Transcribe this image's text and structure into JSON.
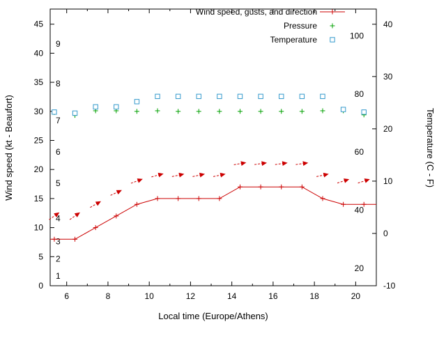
{
  "chart_data": {
    "type": "line",
    "title": "",
    "xlabel": "Local time (Europe/Athens)",
    "ylabel_left": "Wind speed (kt - Beaufort)",
    "ylabel_right": "Temperature (C - F)",
    "legend": [
      {
        "label": "Wind speed, gusts, and direction",
        "marker": "line-plus",
        "color": "#cc0000"
      },
      {
        "label": "Pressure",
        "marker": "plus",
        "color": "#00a000"
      },
      {
        "label": "Temperature",
        "marker": "open-square",
        "color": "#3399cc"
      }
    ],
    "x_hours": [
      5.4,
      6.4,
      7.4,
      8.4,
      9.4,
      10.4,
      11.4,
      12.4,
      13.4,
      14.4,
      15.4,
      16.4,
      17.4,
      18.4,
      19.4,
      20.4
    ],
    "wind_speed_kt": [
      8,
      8,
      10,
      12,
      14,
      15,
      15,
      15,
      15,
      17,
      17,
      17,
      17,
      15,
      14,
      14
    ],
    "wind_edges": {
      "left": {
        "x": 5.2,
        "kt": 8
      },
      "right": {
        "x": 21.0,
        "kt": 14
      }
    },
    "gusts_kt": [
      12,
      12,
      14,
      16,
      18,
      19,
      19,
      19,
      19,
      21,
      21,
      21,
      21,
      19,
      18,
      18
    ],
    "gust_arrow_angles_deg": [
      -35,
      -35,
      -30,
      -25,
      -20,
      -15,
      -12,
      -12,
      -12,
      -10,
      -8,
      -8,
      -8,
      -12,
      -18,
      -18
    ],
    "pressure_plot_kt": [
      29.8,
      29.3,
      30.1,
      30.1,
      30.0,
      30.1,
      30.0,
      30.0,
      30.0,
      30.0,
      30.0,
      30.0,
      30.0,
      30.1,
      30.1,
      29.4
    ],
    "temperature_c": [
      23.2,
      23.0,
      24.2,
      24.2,
      25.2,
      26.2,
      26.2,
      26.2,
      26.2,
      26.2,
      26.2,
      26.2,
      26.2,
      26.2,
      23.7,
      23.2
    ],
    "axes": {
      "x": {
        "min": 5.2,
        "max": 21.0,
        "major_ticks": [
          6,
          8,
          10,
          12,
          14,
          16,
          18,
          20
        ],
        "minor_ticks": [
          7,
          9,
          11,
          13,
          15,
          17,
          19
        ]
      },
      "y_left_kt": {
        "min": 0,
        "max": 47.6,
        "ticks": [
          0,
          5,
          10,
          15,
          20,
          25,
          30,
          35,
          40,
          45
        ]
      },
      "y_right_c": {
        "min": -10,
        "max": 42.9,
        "ticks": [
          -10,
          0,
          10,
          20,
          30,
          40
        ]
      }
    },
    "beaufort_inner_labels": [
      {
        "label": "1",
        "kt": 1.7
      },
      {
        "label": "2",
        "kt": 4.6
      },
      {
        "label": "3",
        "kt": 7.6
      },
      {
        "label": "4",
        "kt": 11.6
      },
      {
        "label": "5",
        "kt": 17.6
      },
      {
        "label": "6",
        "kt": 23.0
      },
      {
        "label": "7",
        "kt": 28.4
      },
      {
        "label": "8",
        "kt": 34.8
      },
      {
        "label": "9",
        "kt": 41.6
      }
    ],
    "fahrenheit_inner_labels": [
      {
        "label": "20",
        "f": 20
      },
      {
        "label": "40",
        "f": 40
      },
      {
        "label": "60",
        "f": 60
      },
      {
        "label": "80",
        "f": 80
      },
      {
        "label": "100",
        "f": 100
      }
    ],
    "colors": {
      "wind": "#cc0000",
      "pressure": "#00a000",
      "temperature": "#3399cc",
      "axis": "#000000"
    }
  }
}
